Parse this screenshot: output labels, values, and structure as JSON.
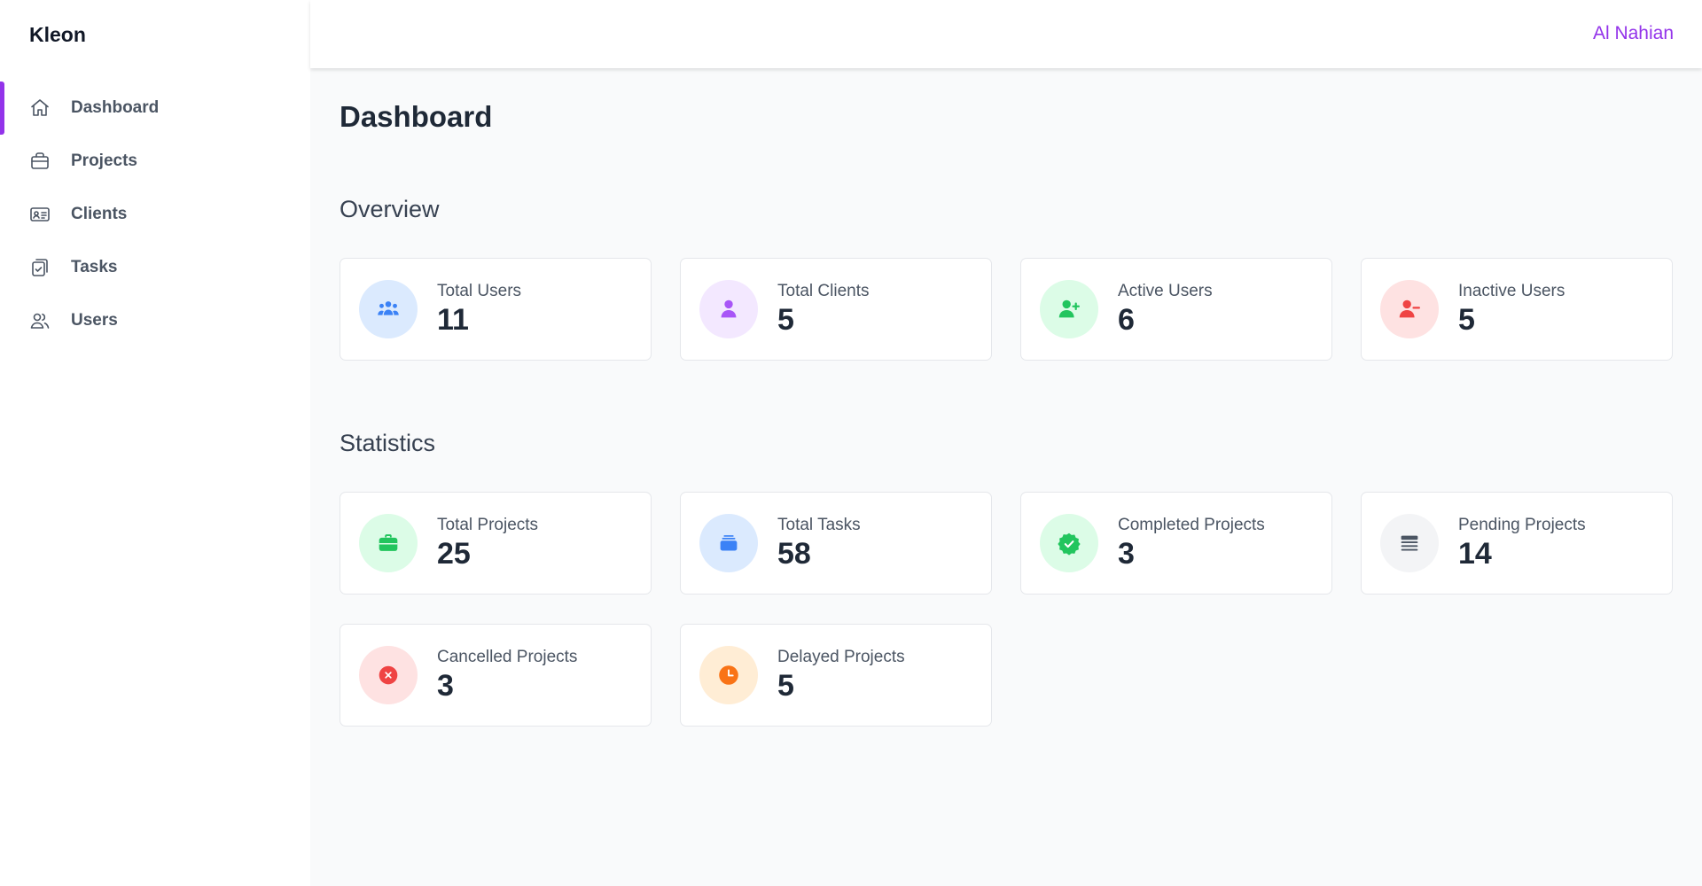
{
  "app": {
    "brand": "Kleon"
  },
  "header": {
    "user_name": "Al Nahian"
  },
  "sidebar": {
    "items": [
      {
        "label": "Dashboard",
        "icon": "home-icon",
        "active": true
      },
      {
        "label": "Projects",
        "icon": "briefcase-icon",
        "active": false
      },
      {
        "label": "Clients",
        "icon": "id-card-icon",
        "active": false
      },
      {
        "label": "Tasks",
        "icon": "clipboard-check-icon",
        "active": false
      },
      {
        "label": "Users",
        "icon": "users-icon",
        "active": false
      }
    ]
  },
  "main": {
    "page_title": "Dashboard",
    "overview": {
      "title": "Overview",
      "cards": [
        {
          "label": "Total Users",
          "value": "11",
          "icon": "users-group-icon",
          "color": "#3b82f6",
          "bg": "#dbeafe"
        },
        {
          "label": "Total Clients",
          "value": "5",
          "icon": "user-icon",
          "color": "#a855f7",
          "bg": "#f3e8ff"
        },
        {
          "label": "Active Users",
          "value": "6",
          "icon": "user-plus-icon",
          "color": "#22c55e",
          "bg": "#dcfce7"
        },
        {
          "label": "Inactive Users",
          "value": "5",
          "icon": "user-minus-icon",
          "color": "#ef4444",
          "bg": "#fee2e2"
        }
      ]
    },
    "statistics": {
      "title": "Statistics",
      "cards": [
        {
          "label": "Total Projects",
          "value": "25",
          "icon": "briefcase-icon",
          "color": "#22c55e",
          "bg": "#dcfce7"
        },
        {
          "label": "Total Tasks",
          "value": "58",
          "icon": "stack-icon",
          "color": "#3b82f6",
          "bg": "#dbeafe"
        },
        {
          "label": "Completed Projects",
          "value": "3",
          "icon": "badge-check-icon",
          "color": "#22c55e",
          "bg": "#dcfce7"
        },
        {
          "label": "Pending Projects",
          "value": "14",
          "icon": "list-icon",
          "color": "#4b5563",
          "bg": "#f3f4f6"
        },
        {
          "label": "Cancelled Projects",
          "value": "3",
          "icon": "x-circle-icon",
          "color": "#ef4444",
          "bg": "#fee2e2"
        },
        {
          "label": "Delayed Projects",
          "value": "5",
          "icon": "clock-icon",
          "color": "#f97316",
          "bg": "#ffedd5"
        }
      ]
    }
  }
}
